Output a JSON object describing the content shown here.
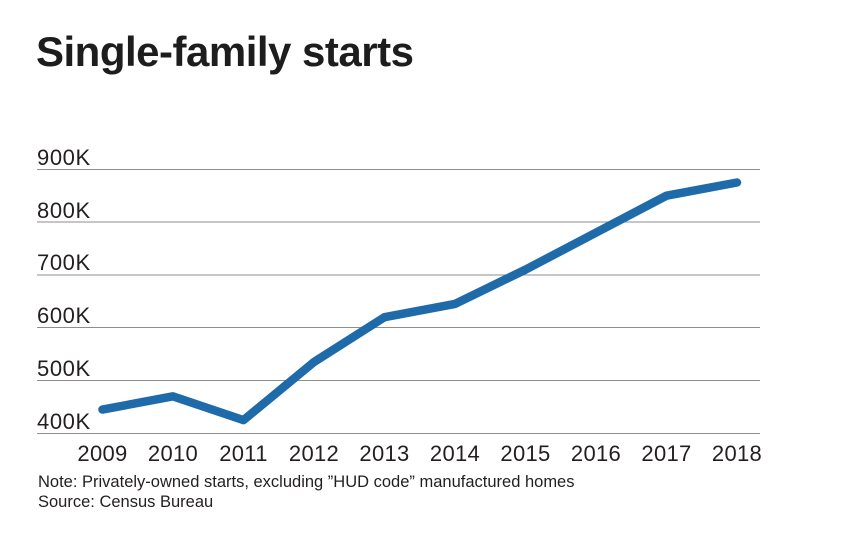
{
  "chart_data": {
    "type": "line",
    "title": "Single-family starts",
    "categories": [
      "2009",
      "2010",
      "2011",
      "2012",
      "2013",
      "2014",
      "2015",
      "2016",
      "2017",
      "2018"
    ],
    "values_thousands": [
      445,
      470,
      425,
      535,
      620,
      645,
      710,
      780,
      850,
      875
    ],
    "y_ticks": [
      "900K",
      "800K",
      "700K",
      "600K",
      "500K",
      "400K"
    ],
    "y_tick_values_thousands": [
      900,
      800,
      700,
      600,
      500,
      400
    ],
    "ylim_thousands": [
      400,
      900
    ],
    "xlabel": "",
    "ylabel": "",
    "legend": "none",
    "grid": "horizontal",
    "line_color": "#1f6ba9",
    "gridline_color": "#8e8e8e",
    "note": "Note: Privately-owned starts, excluding ”HUD code” manufactured homes",
    "source": "Source: Census Bureau"
  }
}
